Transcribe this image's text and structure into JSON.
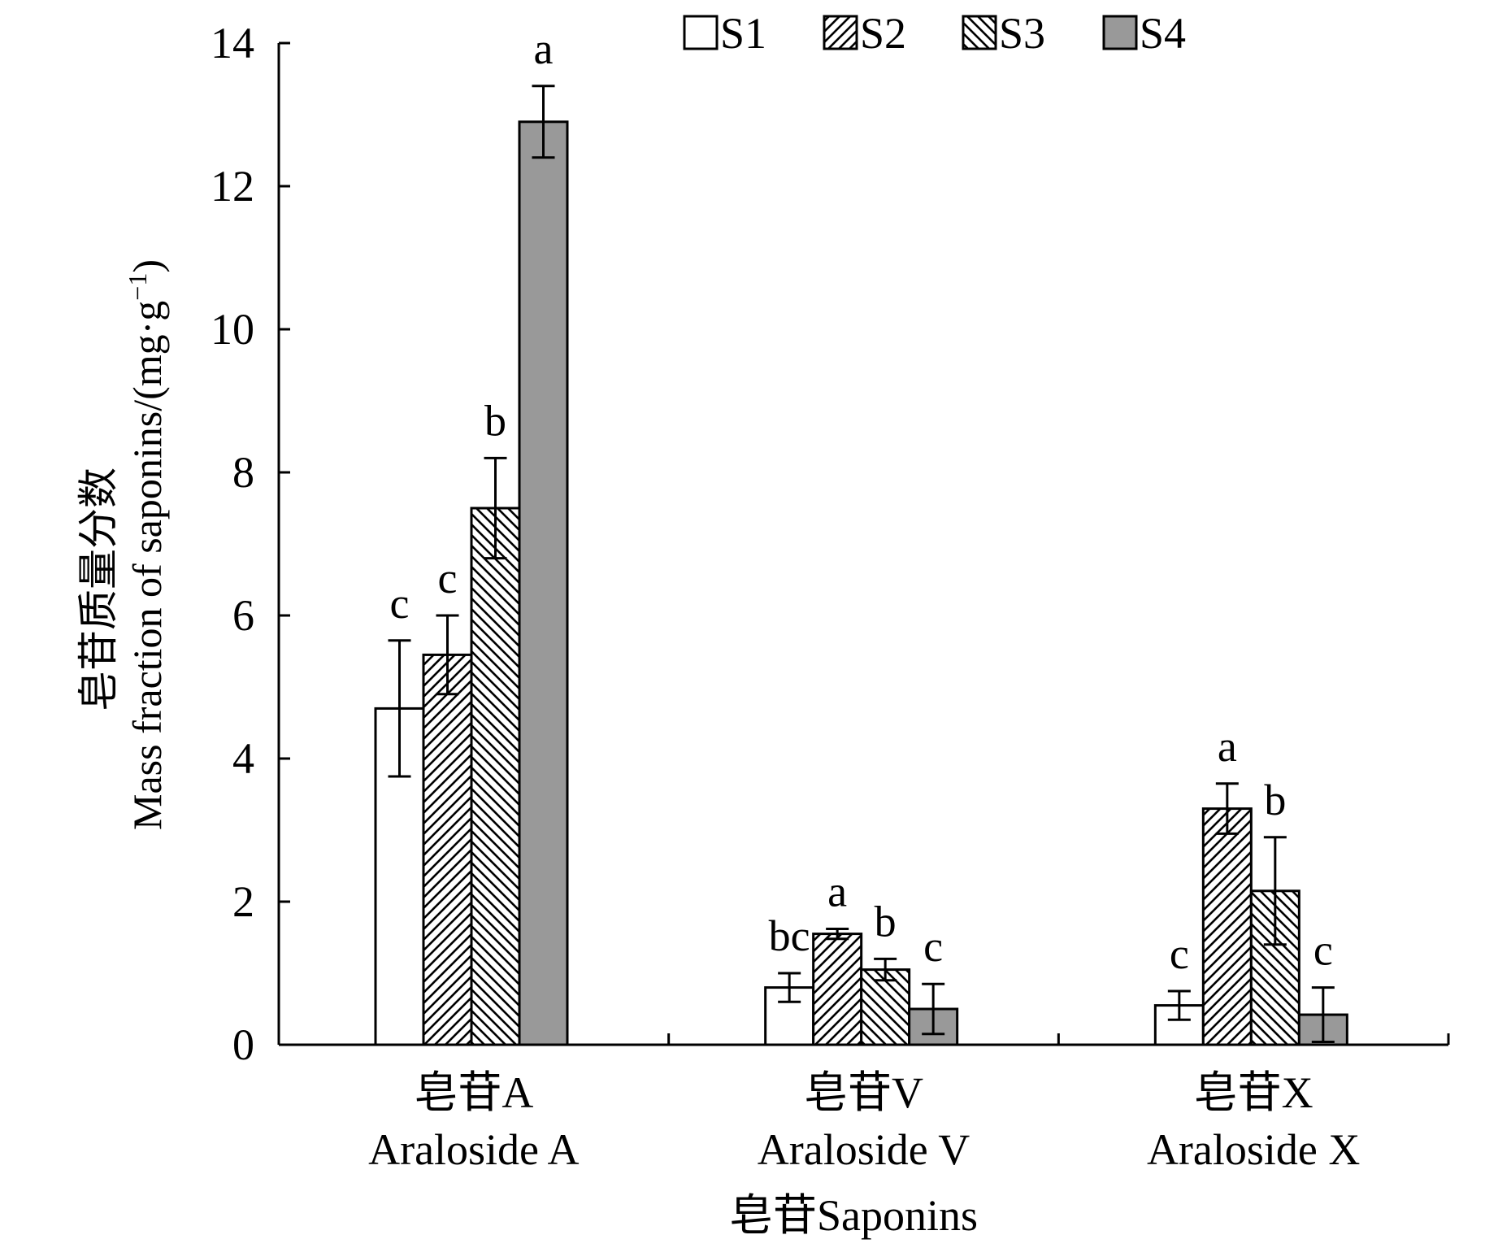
{
  "chart_data": {
    "type": "bar",
    "xlabel": "皂苷Saponins",
    "ylabel_cn": "皂苷质量分数",
    "ylabel_en": "Mass fraction of saponins/(mg·g",
    "ylabel_sup": "−1",
    "ylabel_close": ")",
    "ylim": [
      0,
      14
    ],
    "yticks": [
      0,
      2,
      4,
      6,
      8,
      10,
      12,
      14
    ],
    "categories": [
      {
        "cn": "皂苷A",
        "en": "Araloside A"
      },
      {
        "cn": "皂苷V",
        "en": "Araloside V"
      },
      {
        "cn": "皂苷X",
        "en": "Araloside X"
      }
    ],
    "series": [
      {
        "name": "S1",
        "fill": "white",
        "values": [
          4.7,
          0.8,
          0.55
        ],
        "errors": [
          0.95,
          0.2,
          0.2
        ],
        "letters": [
          "c",
          "bc",
          "c"
        ]
      },
      {
        "name": "S2",
        "fill": "hatch45",
        "values": [
          5.45,
          1.55,
          3.3
        ],
        "errors": [
          0.55,
          0.07,
          0.35
        ],
        "letters": [
          "c",
          "a",
          "a"
        ]
      },
      {
        "name": "S3",
        "fill": "hatch135",
        "values": [
          7.5,
          1.05,
          2.15
        ],
        "errors": [
          0.7,
          0.15,
          0.75
        ],
        "letters": [
          "b",
          "b",
          "b"
        ]
      },
      {
        "name": "S4",
        "fill": "#999999",
        "values": [
          12.9,
          0.5,
          0.42
        ],
        "errors": [
          0.5,
          0.35,
          0.38
        ],
        "letters": [
          "a",
          "c",
          "c"
        ]
      }
    ],
    "legend_position": "top-right"
  }
}
